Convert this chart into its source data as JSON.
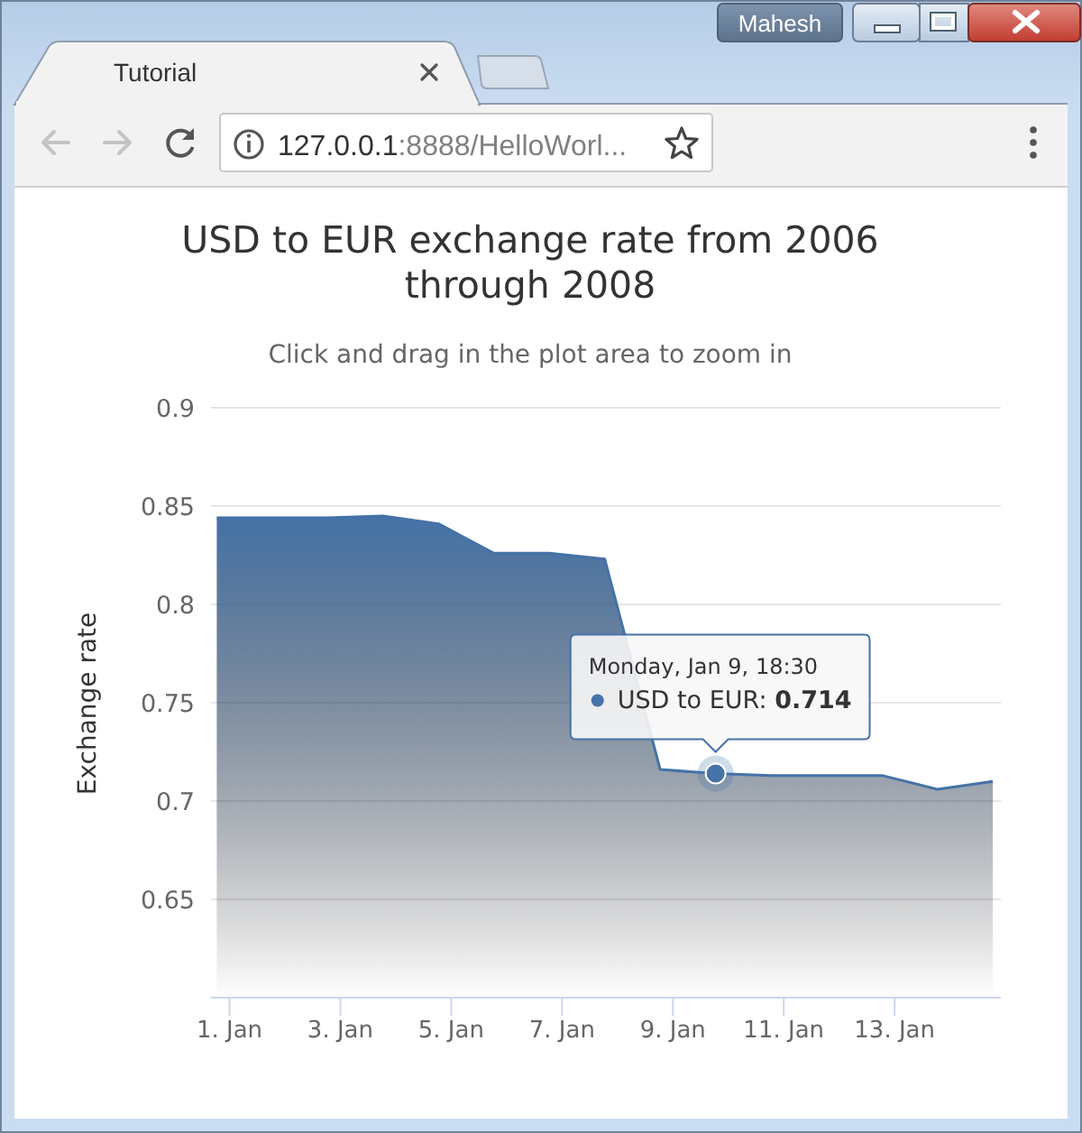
{
  "chart_data": {
    "type": "area",
    "title": "USD to EUR exchange rate from 2006 through 2008",
    "subtitle": "Click and drag in the plot area to zoom in",
    "ylabel": "Exchange rate",
    "x": [
      "2005-12-31T18:30",
      "2006-01-01T18:30",
      "2006-01-02T18:30",
      "2006-01-03T18:30",
      "2006-01-04T18:30",
      "2006-01-05T18:30",
      "2006-01-06T18:30",
      "2006-01-07T18:30",
      "2006-01-08T18:30",
      "2006-01-09T18:30",
      "2006-01-10T18:30",
      "2006-01-11T18:30",
      "2006-01-12T18:30",
      "2006-01-13T18:30",
      "2006-01-14T18:30"
    ],
    "values": [
      0.844,
      0.844,
      0.844,
      0.845,
      0.841,
      0.826,
      0.826,
      0.823,
      0.716,
      0.714,
      0.713,
      0.713,
      0.713,
      0.706,
      0.71
    ],
    "color": "#4572a7",
    "xlim": [
      "2005-12-31T16:00",
      "2006-01-14T22:00"
    ],
    "xticks": [
      {
        "value": "2006-01-01",
        "label": "1. Jan"
      },
      {
        "value": "2006-01-03",
        "label": "3. Jan"
      },
      {
        "value": "2006-01-05",
        "label": "5. Jan"
      },
      {
        "value": "2006-01-07",
        "label": "7. Jan"
      },
      {
        "value": "2006-01-09",
        "label": "9. Jan"
      },
      {
        "value": "2006-01-11",
        "label": "11. Jan"
      },
      {
        "value": "2006-01-13",
        "label": "13. Jan"
      }
    ],
    "ylim": [
      0.6,
      0.9
    ],
    "yticks": [
      {
        "value": 0.6,
        "label": null
      },
      0.65,
      0.7,
      0.75,
      0.8,
      0.85,
      0.9
    ],
    "grid": "y",
    "annotations": [
      "Mahesh",
      "Tutorial",
      "127.0.0.1:8888/HelloWorl...",
      "Monday, Jan 9, 18:30",
      {
        "text": "USD to EUR: 0.714",
        "x": "2006-01-09T18:30",
        "y": 0.714
      }
    ]
  }
}
